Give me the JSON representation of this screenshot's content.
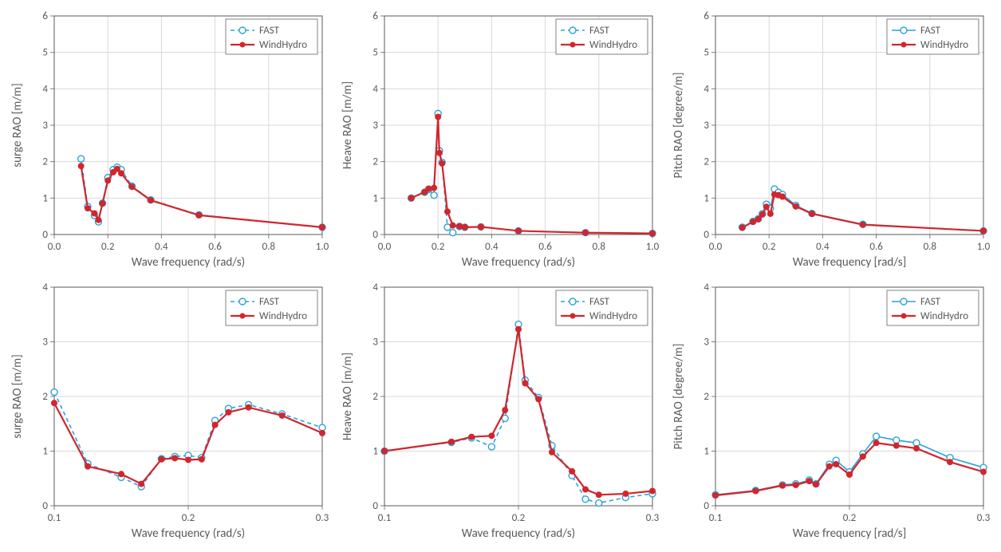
{
  "global": {
    "background_color": "#ffffff",
    "grid_color": "#d9d9d9",
    "axis_color": "#595959",
    "tick_color": "#808080",
    "text_color": "#595959",
    "font_family": "Calibri, Arial, sans-serif",
    "axis_label_fontsize": 15,
    "tick_label_fontsize": 13,
    "legend_fontsize": 13,
    "legend_border_color": "#808080",
    "series": {
      "FAST": {
        "label": "FAST",
        "color": "#2aa3d9",
        "line_width": 1.6,
        "line_dash": "5 4",
        "marker": "open-circle",
        "marker_size": 4.0
      },
      "WindHydro": {
        "label": "WindHydro",
        "color": "#d1262d",
        "line_width": 2.2,
        "line_dash": "",
        "marker": "filled-circle",
        "marker_size": 3.5
      }
    }
  },
  "panels": [
    {
      "id": "surge-full",
      "ylabel": "surge RAO [m/m]",
      "xlabel": "Wave frequency (rad/s)",
      "xlim": [
        0.0,
        1.0
      ],
      "xtick_step": 0.2,
      "xtick_decimals": 1,
      "ylim": [
        0,
        6
      ],
      "ytick_step": 1,
      "ytick_decimals": 0,
      "legend_pos": "top-right",
      "series": [
        {
          "key": "FAST",
          "x": [
            0.1,
            0.125,
            0.15,
            0.165,
            0.18,
            0.2,
            0.22,
            0.235,
            0.25,
            0.29,
            0.36,
            0.54,
            1.0
          ],
          "y": [
            2.08,
            0.77,
            0.52,
            0.35,
            0.86,
            1.56,
            1.78,
            1.85,
            1.78,
            1.33,
            0.95,
            0.54,
            0.2
          ]
        },
        {
          "key": "WindHydro",
          "x": [
            0.1,
            0.125,
            0.15,
            0.165,
            0.18,
            0.2,
            0.22,
            0.235,
            0.25,
            0.29,
            0.36,
            0.54,
            1.0
          ],
          "y": [
            1.88,
            0.72,
            0.58,
            0.4,
            0.85,
            1.48,
            1.71,
            1.8,
            1.68,
            1.31,
            0.94,
            0.53,
            0.2
          ]
        }
      ]
    },
    {
      "id": "heave-full",
      "ylabel": "Heave RAO [m/m]",
      "xlabel": "Wave frequency (rad/s)",
      "xlim": [
        0.0,
        1.0
      ],
      "xtick_step": 0.2,
      "xtick_decimals": 1,
      "ylim": [
        0,
        6
      ],
      "ytick_step": 1,
      "ytick_decimals": 0,
      "legend_pos": "top-right",
      "series": [
        {
          "key": "FAST",
          "x": [
            0.1,
            0.15,
            0.165,
            0.185,
            0.2,
            0.205,
            0.215,
            0.235,
            0.255,
            0.28,
            0.3,
            0.36,
            0.5,
            0.75,
            1.0
          ],
          "y": [
            1.0,
            1.16,
            1.24,
            1.08,
            3.32,
            2.3,
            1.98,
            0.2,
            0.05,
            0.22,
            0.2,
            0.21,
            0.1,
            0.05,
            0.03
          ]
        },
        {
          "key": "WindHydro",
          "x": [
            0.1,
            0.15,
            0.165,
            0.185,
            0.2,
            0.205,
            0.215,
            0.235,
            0.255,
            0.28,
            0.3,
            0.36,
            0.5,
            0.75,
            1.0
          ],
          "y": [
            1.0,
            1.17,
            1.26,
            1.28,
            3.23,
            2.24,
            1.95,
            0.63,
            0.25,
            0.23,
            0.2,
            0.21,
            0.1,
            0.05,
            0.03
          ]
        }
      ]
    },
    {
      "id": "pitch-full",
      "ylabel": "Pitch  RAO [degree/m]",
      "xlabel": "Wave frequency [rad/s]",
      "xlim": [
        0.0,
        1.0
      ],
      "xtick_step": 0.2,
      "xtick_decimals": 1,
      "ylim": [
        0,
        6
      ],
      "ytick_step": 1,
      "ytick_decimals": 0,
      "legend_pos": "top-right",
      "legend_solid_fast": true,
      "series": [
        {
          "key": "FAST",
          "solid": true,
          "x": [
            0.1,
            0.14,
            0.16,
            0.175,
            0.19,
            0.205,
            0.22,
            0.235,
            0.25,
            0.3,
            0.36,
            0.55,
            1.0
          ],
          "y": [
            0.2,
            0.36,
            0.43,
            0.57,
            0.83,
            0.72,
            1.25,
            1.16,
            1.1,
            0.8,
            0.58,
            0.28,
            0.1
          ]
        },
        {
          "key": "WindHydro",
          "x": [
            0.1,
            0.14,
            0.16,
            0.175,
            0.19,
            0.205,
            0.22,
            0.235,
            0.25,
            0.3,
            0.36,
            0.55,
            1.0
          ],
          "y": [
            0.19,
            0.35,
            0.42,
            0.55,
            0.76,
            0.57,
            1.1,
            1.08,
            1.04,
            0.77,
            0.57,
            0.27,
            0.1
          ]
        }
      ]
    },
    {
      "id": "surge-zoom",
      "ylabel": "surge RAO [m/m]",
      "xlabel": "Wave frequency (rad/s)",
      "xlim": [
        0.1,
        0.3
      ],
      "xtick_step": 0.1,
      "xtick_decimals": 1,
      "ylim": [
        0,
        4
      ],
      "ytick_step": 1,
      "ytick_decimals": 0,
      "legend_pos": "top-right",
      "series": [
        {
          "key": "FAST",
          "x": [
            0.1,
            0.125,
            0.15,
            0.165,
            0.18,
            0.19,
            0.2,
            0.21,
            0.22,
            0.23,
            0.245,
            0.27,
            0.3
          ],
          "y": [
            2.08,
            0.77,
            0.52,
            0.35,
            0.86,
            0.9,
            0.92,
            0.88,
            1.56,
            1.78,
            1.85,
            1.68,
            1.43
          ]
        },
        {
          "key": "WindHydro",
          "x": [
            0.1,
            0.125,
            0.15,
            0.165,
            0.18,
            0.19,
            0.2,
            0.21,
            0.22,
            0.23,
            0.245,
            0.27,
            0.3
          ],
          "y": [
            1.88,
            0.72,
            0.58,
            0.4,
            0.85,
            0.87,
            0.84,
            0.85,
            1.48,
            1.71,
            1.8,
            1.65,
            1.33
          ]
        }
      ]
    },
    {
      "id": "heave-zoom",
      "ylabel": "Heave RAO [m/m]",
      "xlabel": "Wave frequency (rad/s)",
      "xlim": [
        0.1,
        0.3
      ],
      "xtick_step": 0.1,
      "xtick_decimals": 1,
      "ylim": [
        0,
        4
      ],
      "ytick_step": 1,
      "ytick_decimals": 0,
      "legend_pos": "top-right",
      "series": [
        {
          "key": "FAST",
          "x": [
            0.1,
            0.15,
            0.165,
            0.18,
            0.19,
            0.2,
            0.205,
            0.215,
            0.225,
            0.24,
            0.25,
            0.26,
            0.28,
            0.3
          ],
          "y": [
            1.0,
            1.16,
            1.24,
            1.08,
            1.6,
            3.32,
            2.3,
            1.98,
            1.1,
            0.55,
            0.12,
            0.05,
            0.15,
            0.22
          ]
        },
        {
          "key": "WindHydro",
          "x": [
            0.1,
            0.15,
            0.165,
            0.18,
            0.19,
            0.2,
            0.205,
            0.215,
            0.225,
            0.24,
            0.25,
            0.26,
            0.28,
            0.3
          ],
          "y": [
            1.0,
            1.17,
            1.26,
            1.28,
            1.75,
            3.23,
            2.24,
            1.95,
            0.98,
            0.63,
            0.3,
            0.2,
            0.22,
            0.27
          ]
        }
      ]
    },
    {
      "id": "pitch-zoom",
      "ylabel": "Pitch  RAO [degree/m]",
      "xlabel": "Wave frequency [rad/s]",
      "xlim": [
        0.1,
        0.3
      ],
      "xtick_step": 0.1,
      "xtick_decimals": 1,
      "ylim": [
        0,
        4
      ],
      "ytick_step": 1,
      "ytick_decimals": 0,
      "legend_pos": "top-right",
      "legend_solid_fast": true,
      "series": [
        {
          "key": "FAST",
          "solid": true,
          "x": [
            0.1,
            0.13,
            0.15,
            0.16,
            0.17,
            0.175,
            0.185,
            0.19,
            0.2,
            0.21,
            0.22,
            0.235,
            0.25,
            0.275,
            0.3
          ],
          "y": [
            0.2,
            0.28,
            0.38,
            0.4,
            0.47,
            0.4,
            0.76,
            0.83,
            0.62,
            0.95,
            1.27,
            1.2,
            1.15,
            0.88,
            0.7
          ]
        },
        {
          "key": "WindHydro",
          "x": [
            0.1,
            0.13,
            0.15,
            0.16,
            0.17,
            0.175,
            0.185,
            0.19,
            0.2,
            0.21,
            0.22,
            0.235,
            0.25,
            0.275,
            0.3
          ],
          "y": [
            0.19,
            0.27,
            0.37,
            0.38,
            0.45,
            0.39,
            0.72,
            0.76,
            0.57,
            0.9,
            1.15,
            1.1,
            1.05,
            0.8,
            0.62
          ]
        }
      ]
    }
  ]
}
